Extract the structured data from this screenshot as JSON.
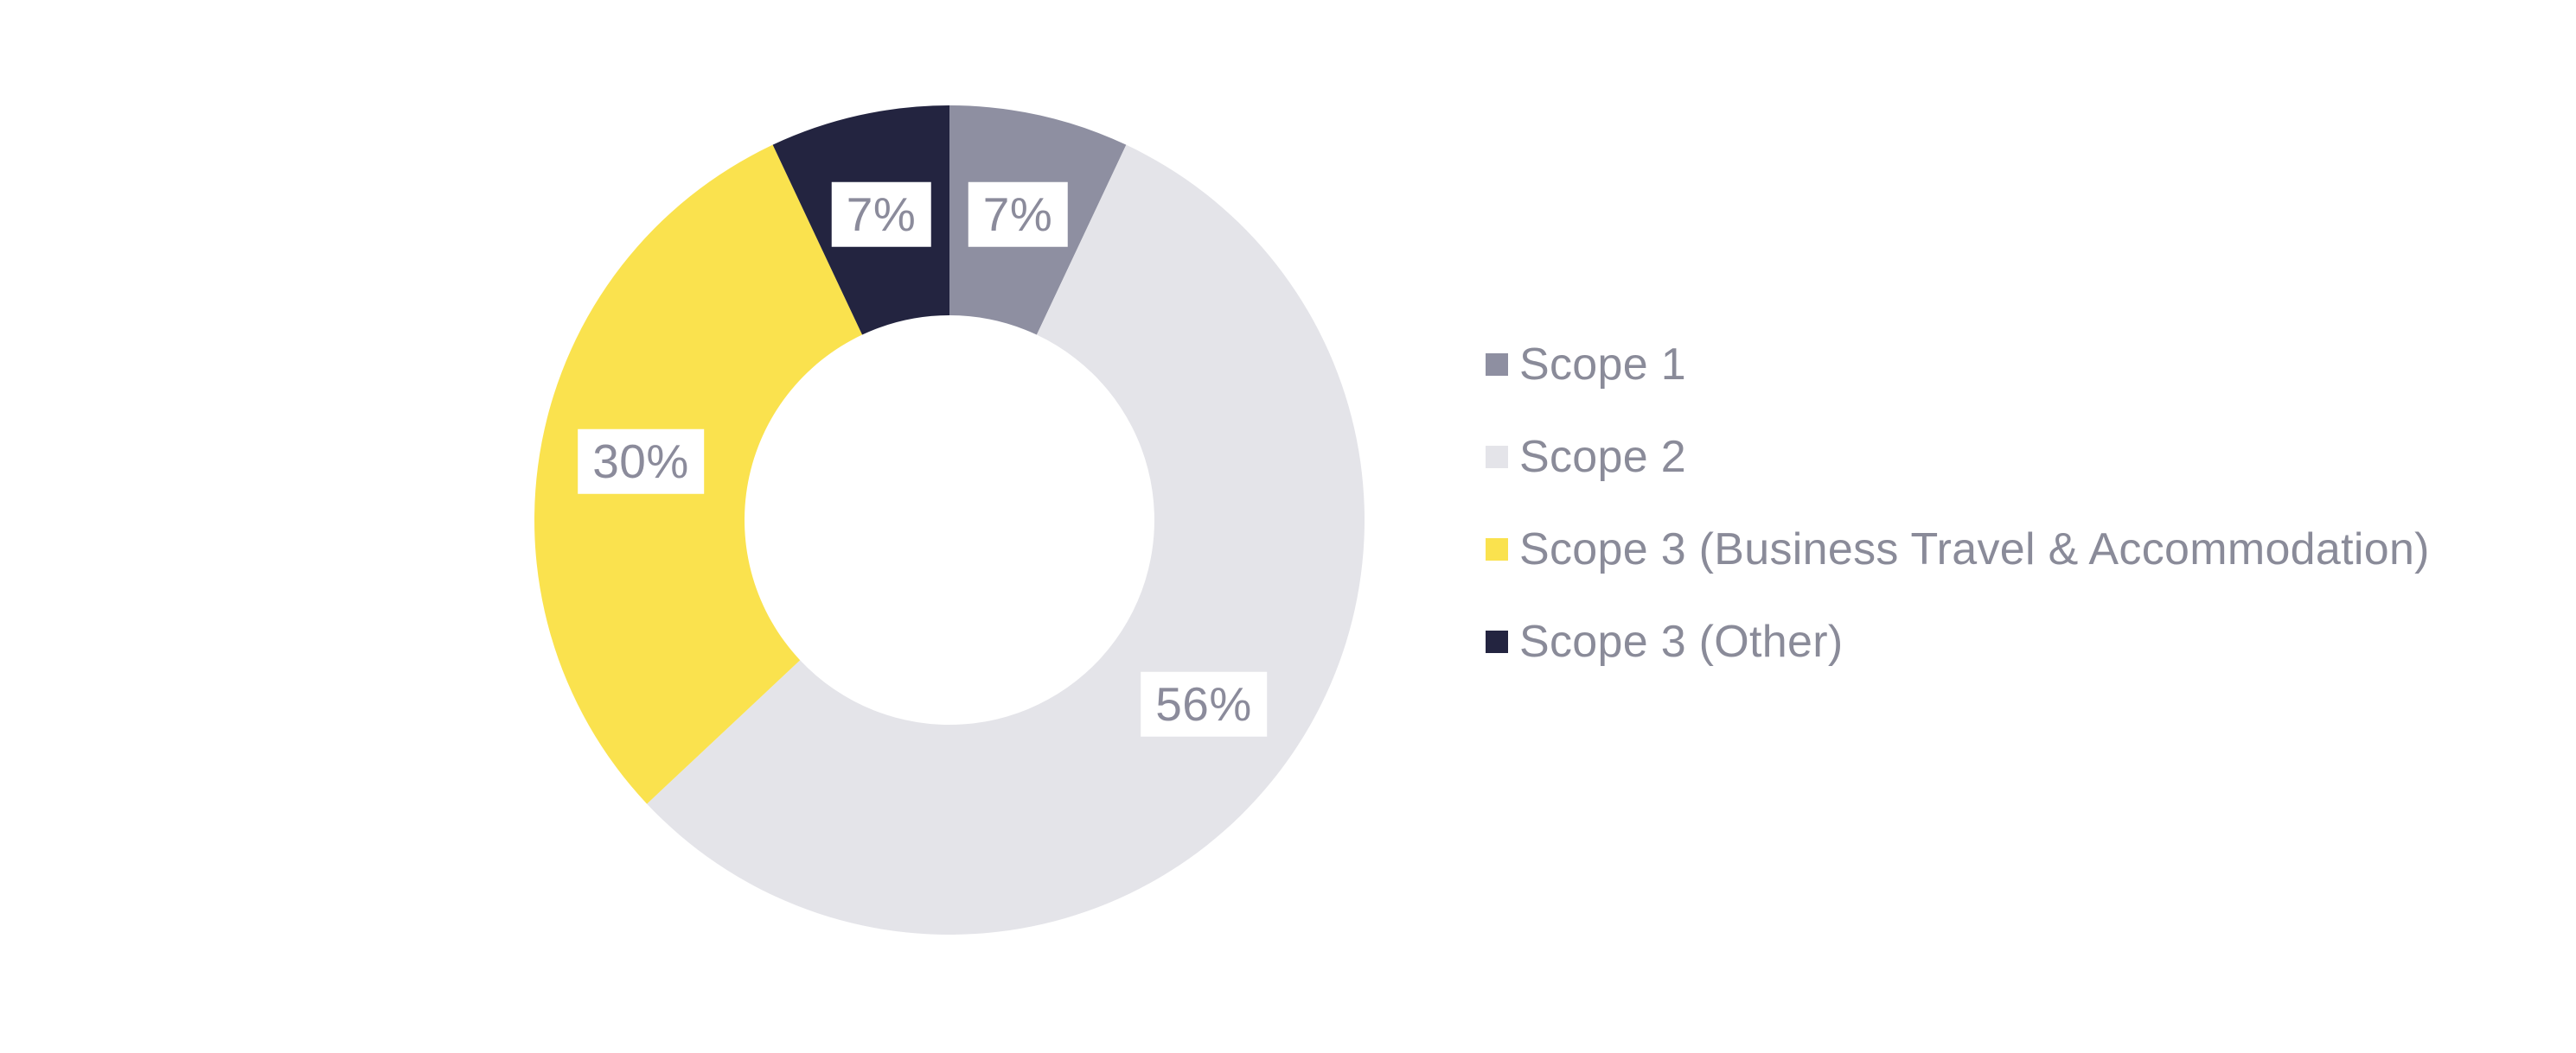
{
  "background_color": "#ffffff",
  "chart_data": {
    "type": "pie",
    "subtype": "donut",
    "title": "",
    "direction": "clockwise",
    "start_angle_deg": 0,
    "inner_radius_ratio": 0.494,
    "legend_position": "right",
    "data_label_text_color": "#8b8b9b",
    "data_label_bg_color": "#ffffff",
    "legend_text_color": "#8a8b99",
    "slices": [
      {
        "label": "Scope 1",
        "value": 7,
        "value_label": "7%",
        "color": "#8e8fa1"
      },
      {
        "label": "Scope 2",
        "value": 56,
        "value_label": "56%",
        "color": "#e4e4e9"
      },
      {
        "label": "Scope 3 (Business Travel & Accommodation)",
        "value": 30,
        "value_label": "30%",
        "color": "#fae24e"
      },
      {
        "label": "Scope 3 (Other)",
        "value": 7,
        "value_label": "7%",
        "color": "#232440"
      }
    ]
  }
}
